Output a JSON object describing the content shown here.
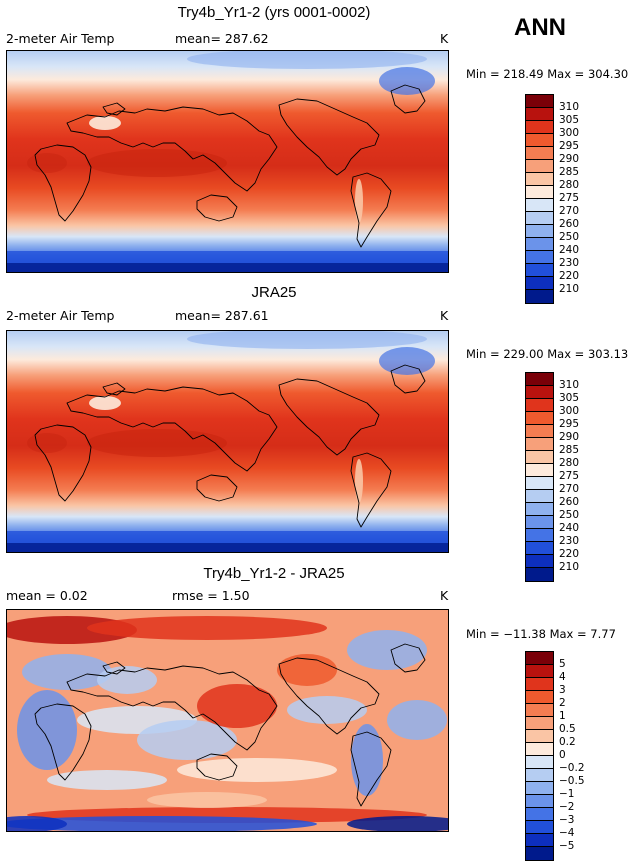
{
  "season": "ANN",
  "panels": [
    {
      "title": "Try4b_Yr1-2 (yrs 0001-0002)",
      "left_label": "2-meter Air Temp",
      "center_label": "mean= 287.62",
      "unit": "K",
      "min_max": "Min = 218.49  Max = 304.30",
      "legend_colors": [
        "#7a0008",
        "#b8120e",
        "#e0341c",
        "#ef5a2e",
        "#f47d52",
        "#f7a07a",
        "#fac5a5",
        "#fdeadc",
        "#d8e6f7",
        "#b5cdf2",
        "#8fb1ee",
        "#6b93ea",
        "#4473e6",
        "#2150da",
        "#0d2fbe",
        "#001a8c"
      ],
      "legend_labels": [
        "310",
        "305",
        "300",
        "295",
        "290",
        "285",
        "280",
        "275",
        "270",
        "260",
        "250",
        "240",
        "230",
        "220",
        "210"
      ]
    },
    {
      "title": "JRA25",
      "left_label": "2-meter Air Temp",
      "center_label": "mean= 287.61",
      "unit": "K",
      "min_max": "Min = 229.00  Max = 303.13",
      "legend_colors": [
        "#7a0008",
        "#b8120e",
        "#e0341c",
        "#ef5a2e",
        "#f47d52",
        "#f7a07a",
        "#fac5a5",
        "#fdeadc",
        "#d8e6f7",
        "#b5cdf2",
        "#8fb1ee",
        "#6b93ea",
        "#4473e6",
        "#2150da",
        "#0d2fbe",
        "#001a8c"
      ],
      "legend_labels": [
        "310",
        "305",
        "300",
        "295",
        "290",
        "285",
        "280",
        "275",
        "270",
        "260",
        "250",
        "240",
        "230",
        "220",
        "210"
      ]
    },
    {
      "title": "Try4b_Yr1-2 - JRA25",
      "left_label": "mean =    0.02",
      "center_label": "rmse =    1.50",
      "unit": "K",
      "min_max": "Min = −11.38  Max =    7.77",
      "legend_colors": [
        "#7a0008",
        "#b8120e",
        "#e0341c",
        "#ef5a2e",
        "#f47d52",
        "#f7a07a",
        "#fac5a5",
        "#fdeadc",
        "#d8e6f7",
        "#b5cdf2",
        "#8fb1ee",
        "#6b93ea",
        "#4473e6",
        "#2150da",
        "#0d2fbe",
        "#001a8c"
      ],
      "legend_labels": [
        "5",
        "4",
        "3",
        "2",
        "1",
        "0.5",
        "0.2",
        "0",
        "−0.2",
        "−0.5",
        "−1",
        "−2",
        "−3",
        "−4",
        "−5"
      ]
    }
  ]
}
